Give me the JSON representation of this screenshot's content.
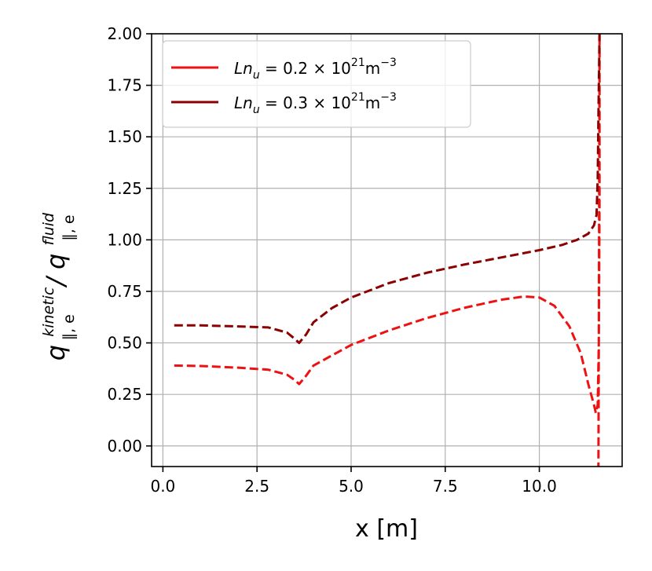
{
  "chart_data": {
    "type": "line",
    "title": "",
    "xlabel": "x [m]",
    "ylabel": {
      "base1": "q",
      "sup1": "kinetic",
      "sub1": "∥, e",
      "slash": "/",
      "base2": "q",
      "sup2": "fluid",
      "sub2": "∥, e"
    },
    "xlim": [
      -0.3,
      12.2
    ],
    "ylim": [
      -0.1,
      2.0
    ],
    "x_ticks": [
      0.0,
      2.5,
      5.0,
      7.5,
      10.0
    ],
    "x_tick_labels": [
      "0.0",
      "2.5",
      "5.0",
      "7.5",
      "10.0"
    ],
    "y_ticks": [
      0.0,
      0.25,
      0.5,
      0.75,
      1.0,
      1.25,
      1.5,
      1.75,
      2.0
    ],
    "y_tick_labels": [
      "0.00",
      "0.25",
      "0.50",
      "0.75",
      "1.00",
      "1.25",
      "1.50",
      "1.75",
      "2.00"
    ],
    "grid": true,
    "legend_position": "upper-left",
    "series": [
      {
        "name": "Ln_u = 0.2 × 10^21 m^-3",
        "legend": {
          "prefix": "Ln",
          "sub": "u",
          "mid": " = 0.2 × 10",
          "exp": "21",
          "unit": "m",
          "unit_exp": "−3"
        },
        "color": "#ee1111",
        "style": "dashed",
        "x": [
          0.3,
          1.0,
          2.0,
          2.8,
          3.3,
          3.5,
          3.62,
          3.8,
          4.0,
          4.5,
          5.0,
          6.0,
          7.0,
          8.0,
          9.0,
          9.6,
          10.0,
          10.4,
          10.8,
          11.1,
          11.3,
          11.45,
          11.5,
          11.55,
          11.58,
          11.6,
          11.6,
          11.58,
          11.57
        ],
        "y": [
          0.39,
          0.388,
          0.38,
          0.37,
          0.345,
          0.32,
          0.3,
          0.34,
          0.39,
          0.44,
          0.49,
          0.56,
          0.62,
          0.67,
          0.71,
          0.725,
          0.72,
          0.68,
          0.58,
          0.45,
          0.3,
          0.2,
          0.16,
          0.2,
          0.5,
          1.2,
          2.0,
          0.5,
          -0.1
        ]
      },
      {
        "name": "Ln_u = 0.3 × 10^21 m^-3",
        "legend": {
          "prefix": "Ln",
          "sub": "u",
          "mid": " = 0.3 × 10",
          "exp": "21",
          "unit": "m",
          "unit_exp": "−3"
        },
        "color": "#8b0000",
        "style": "dashed",
        "x": [
          0.3,
          1.0,
          2.0,
          2.8,
          3.3,
          3.5,
          3.62,
          3.8,
          4.0,
          4.5,
          5.0,
          6.0,
          7.0,
          8.0,
          9.0,
          10.0,
          10.6,
          11.0,
          11.3,
          11.45,
          11.52,
          11.55,
          11.57,
          11.6
        ],
        "y": [
          0.585,
          0.585,
          0.58,
          0.575,
          0.55,
          0.52,
          0.5,
          0.54,
          0.6,
          0.67,
          0.72,
          0.79,
          0.84,
          0.88,
          0.915,
          0.95,
          0.975,
          1.0,
          1.03,
          1.07,
          1.12,
          1.3,
          1.6,
          2.0
        ]
      }
    ]
  }
}
